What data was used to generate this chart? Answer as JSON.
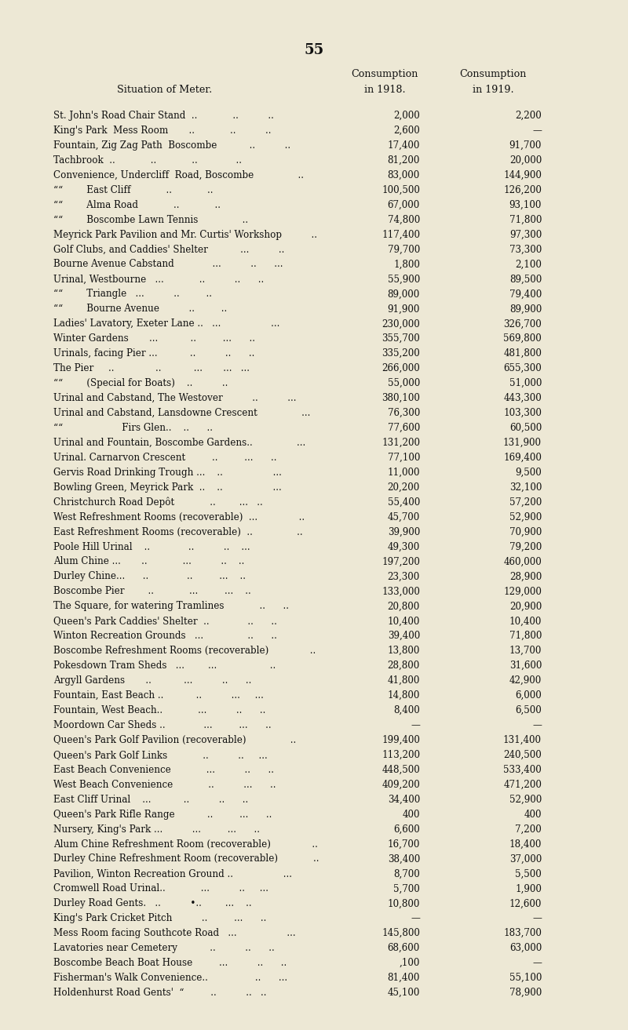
{
  "page_number": "55",
  "col1_header": "Situation of Meter.",
  "col2_header_line1": "Consumption",
  "col2_header_line2": "in 1918.",
  "col3_header_line1": "Consumption",
  "col3_header_line2": "in 1919.",
  "rows": [
    [
      "St. John's Road Chair Stand  ..            ..          ..",
      "2,000",
      "2,200"
    ],
    [
      "King's Park  Mess Room       ..            ..          ..",
      "2,600",
      "—"
    ],
    [
      "Fountain, Zig Zag Path  Boscombe           ..          ..",
      "17,400",
      "91,700"
    ],
    [
      "Tachbrook  ..            ..            ..             ..",
      "81,200",
      "20,000"
    ],
    [
      "Convenience, Undercliff  Road, Boscombe               ..",
      "83,000",
      "144,900"
    ],
    [
      "““        East Cliff            ..            ..",
      "100,500",
      "126,200"
    ],
    [
      "““        Alma Road            ..            ..",
      "67,000",
      "93,100"
    ],
    [
      "““        Boscombe Lawn Tennis               ..",
      "74,800",
      "71,800"
    ],
    [
      "Meyrick Park Pavilion and Mr. Curtis' Workshop          ..",
      "117,400",
      "97,300"
    ],
    [
      "Golf Clubs, and Caddies' Shelter           ...          ..",
      "79,700",
      "73,300"
    ],
    [
      "Bourne Avenue Cabstand             ...          ..      ...",
      "1,800",
      "2,100"
    ],
    [
      "Urinal, Westbourne   ...            ..          ..      ..",
      "55,900",
      "89,500"
    ],
    [
      "““        Triangle   ...          ..         ..",
      "89,000",
      "79,400"
    ],
    [
      "““        Bourne Avenue          ..         ..",
      "91,900",
      "89,900"
    ],
    [
      "Ladies' Lavatory, Exeter Lane ..   ...                 ...",
      "230,000",
      "326,700"
    ],
    [
      "Winter Gardens       ...           ..         ...      ..",
      "355,700",
      "569,800"
    ],
    [
      "Urinals, facing Pier ...           ..          ..      ..",
      "335,200",
      "481,800"
    ],
    [
      "The Pier     ..              ..           ...       ...   ...",
      "266,000",
      "655,300"
    ],
    [
      "““        (Special for Boats)    ..          ..",
      "55,000",
      "51,000"
    ],
    [
      "Urinal and Cabstand, The Westover          ..          ...",
      "380,100",
      "443,300"
    ],
    [
      "Urinal and Cabstand, Lansdowne Crescent               ...",
      "76,300",
      "103,300"
    ],
    [
      "““                    Firs Glen..    ..      ..",
      "77,600",
      "60,500"
    ],
    [
      "Urinal and Fountain, Boscombe Gardens..               ...",
      "131,200",
      "131,900"
    ],
    [
      "Urinal. Carnarvon Crescent         ..         ...      ..",
      "77,100",
      "169,400"
    ],
    [
      "Gervis Road Drinking Trough ...    ..                 ...",
      "11,000",
      "9,500"
    ],
    [
      "Bowling Green, Meyrick Park  ..    ..                 ...",
      "20,200",
      "32,100"
    ],
    [
      "Christchurch Road Depôt            ..        ...   ..",
      "55,400",
      "57,200"
    ],
    [
      "West Refreshment Rooms (recoverable)  ...              ..",
      "45,700",
      "52,900"
    ],
    [
      "East Refreshment Rooms (recoverable)  ..               ..",
      "39,900",
      "70,900"
    ],
    [
      "Poole Hill Urinal    ..             ..          ..    ...",
      "49,300",
      "79,200"
    ],
    [
      "Alum Chine ...       ..            ...          ..    ..",
      "197,200",
      "460,000"
    ],
    [
      "Durley Chine...      ..             ..         ...    ..",
      "23,300",
      "28,900"
    ],
    [
      "Boscombe Pier        ..            ...         ...    ..",
      "133,000",
      "129,000"
    ],
    [
      "The Square, for watering Tramlines            ..      ..",
      "20,800",
      "20,900"
    ],
    [
      "Queen's Park Caddies' Shelter  ..             ..      ..",
      "10,400",
      "10,400"
    ],
    [
      "Winton Recreation Grounds   ...               ..      ..",
      "39,400",
      "71,800"
    ],
    [
      "Boscombe Refreshment Rooms (recoverable)              ..",
      "13,800",
      "13,700"
    ],
    [
      "Pokesdown Tram Sheds   ...        ...                  ..",
      "28,800",
      "31,600"
    ],
    [
      "Argyll Gardens       ..           ...          ..      ..",
      "41,800",
      "42,900"
    ],
    [
      "Fountain, East Beach ..           ..          ...     ...",
      "14,800",
      "6,000"
    ],
    [
      "Fountain, West Beach..            ...          ..      ..",
      "8,400",
      "6,500"
    ],
    [
      "Moordown Car Sheds ..             ...         ...      ..",
      "—",
      "—"
    ],
    [
      "Queen's Park Golf Pavilion (recoverable)               ..",
      "199,400",
      "131,400"
    ],
    [
      "Queen's Park Golf Links            ..          ..     ...",
      "113,200",
      "240,500"
    ],
    [
      "East Beach Convenience            ...          ..      ..",
      "448,500",
      "533,400"
    ],
    [
      "West Beach Convenience            ..          ...      ..",
      "409,200",
      "471,200"
    ],
    [
      "East Cliff Urinal    ...           ..          ..      ..",
      "34,400",
      "52,900"
    ],
    [
      "Queen's Park Rifle Range           ..         ...      ..",
      "400",
      "400"
    ],
    [
      "Nursery, King's Park ...          ...         ...      ..",
      "6,600",
      "7,200"
    ],
    [
      "Alum Chine Refreshment Room (recoverable)              ..",
      "16,700",
      "18,400"
    ],
    [
      "Durley Chine Refreshment Room (recoverable)            ..",
      "38,400",
      "37,000"
    ],
    [
      "Pavilion, Winton Recreation Ground ..                 ...",
      "8,700",
      "5,500"
    ],
    [
      "Cromwell Road Urinal..            ...          ..     ...",
      "5,700",
      "1,900"
    ],
    [
      "Durley Road Gents.   ..          •..        ...    ..",
      "10,800",
      "12,600"
    ],
    [
      "King's Park Cricket Pitch          ..         ...      ..",
      "—",
      "—"
    ],
    [
      "Mess Room facing Southcote Road   ...                 ...",
      "145,800",
      "183,700"
    ],
    [
      "Lavatories near Cemetery           ..          ..      ..",
      "68,600",
      "63,000"
    ],
    [
      "Boscombe Beach Boat House         ...          ..      ..",
      ",100",
      "—"
    ],
    [
      "Fisherman's Walk Convenience..                ..      ...",
      "81,400",
      "55,100"
    ],
    [
      "Holdenhurst Road Gents'  “         ..          ..   ..",
      "45,100",
      "78,900"
    ]
  ],
  "bg_color": "#ede8d5",
  "text_color": "#111111",
  "font_size": 8.6,
  "header_font_size": 9.2,
  "title_font_size": 13
}
